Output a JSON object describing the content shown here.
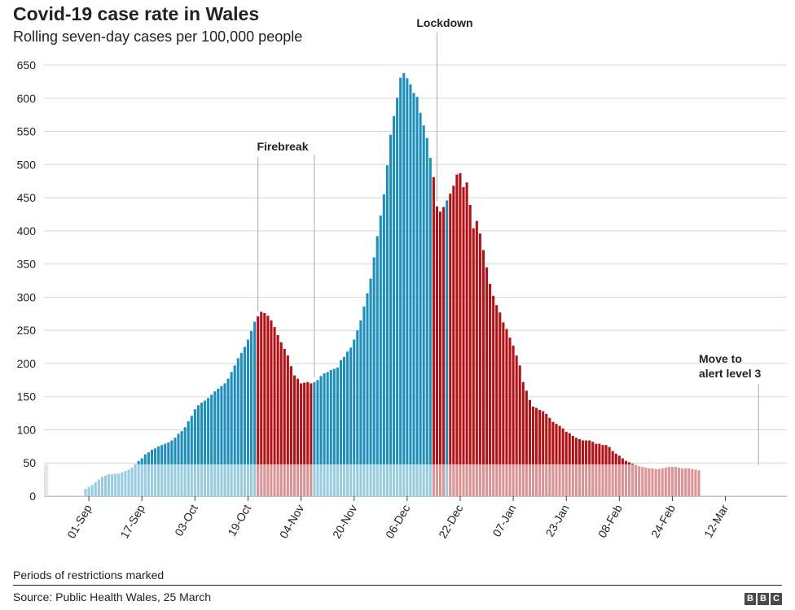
{
  "header": {
    "title": "Covid-19 case rate in Wales",
    "subtitle": "Rolling seven-day cases per 100,000 people"
  },
  "footer": {
    "note": "Periods of restrictions marked",
    "source": "Source: Public Health Wales, 25 March",
    "logo_letters": [
      "B",
      "B",
      "C"
    ]
  },
  "colors": {
    "open": "#1f8fb9",
    "restricted": "#b01216",
    "alert3": "#6a5acd",
    "shade": "#f0f0f0",
    "grid": "#d8d8d8"
  },
  "chart_data": {
    "type": "bar",
    "start_date": "31-Aug",
    "ylim": [
      0,
      650
    ],
    "yticks": [
      0,
      50,
      100,
      150,
      200,
      250,
      300,
      350,
      400,
      450,
      500,
      550,
      600,
      650
    ],
    "xtick_labels": [
      "01-Sep",
      "17-Sep",
      "03-Oct",
      "19-Oct",
      "04-Nov",
      "20-Nov",
      "06-Dec",
      "22-Dec",
      "07-Jan",
      "23-Jan",
      "08-Feb",
      "24-Feb",
      "12-Mar"
    ],
    "values": [
      11,
      14,
      17,
      21,
      25,
      29,
      31,
      33,
      33,
      34,
      34,
      36,
      38,
      40,
      43,
      48,
      53,
      57,
      63,
      66,
      70,
      72,
      75,
      77,
      79,
      81,
      84,
      88,
      94,
      98,
      104,
      113,
      121,
      131,
      137,
      141,
      144,
      148,
      153,
      158,
      162,
      166,
      170,
      177,
      187,
      197,
      208,
      216,
      225,
      236,
      249,
      263,
      271,
      278,
      276,
      272,
      265,
      255,
      243,
      232,
      222,
      212,
      196,
      182,
      177,
      170,
      171,
      172,
      170,
      172,
      175,
      181,
      185,
      187,
      190,
      192,
      194,
      205,
      210,
      218,
      224,
      236,
      250,
      265,
      286,
      306,
      328,
      360,
      392,
      423,
      455,
      499,
      545,
      573,
      601,
      631,
      638,
      630,
      621,
      608,
      602,
      578,
      559,
      540,
      510,
      481,
      437,
      429,
      436,
      446,
      456,
      468,
      485,
      487,
      466,
      473,
      439,
      404,
      415,
      396,
      371,
      345,
      320,
      302,
      288,
      277,
      262,
      252,
      239,
      227,
      212,
      197,
      172,
      159,
      145,
      135,
      133,
      130,
      128,
      124,
      118,
      112,
      109,
      106,
      102,
      97,
      95,
      91,
      88,
      86,
      84,
      84,
      84,
      82,
      79,
      79,
      77,
      77,
      74,
      68,
      64,
      61,
      57,
      53,
      51,
      49,
      47,
      45,
      44,
      43,
      42,
      42,
      41,
      41,
      42,
      43,
      44,
      44,
      44,
      43,
      42,
      42,
      42,
      41,
      40,
      39
    ],
    "restriction_periods": [
      {
        "from_index": 52,
        "to_index": 68,
        "status": "restricted",
        "label": "Firebreak"
      },
      {
        "from_index": 105,
        "to_index": 108,
        "status": "restricted",
        "label": "Lockdown"
      },
      {
        "from_index": 109,
        "to_index": 109,
        "status": "open",
        "label": ""
      },
      {
        "from_index": 110,
        "to_index": 202,
        "status": "restricted",
        "label": ""
      },
      {
        "from_index": 203,
        "to_index": 203,
        "status": "alert3",
        "label": "Move to alert level 3"
      }
    ],
    "annotations": [
      {
        "lines": [
          "Firebreak"
        ],
        "bar_indices": [
          52,
          69
        ]
      },
      {
        "lines": [
          "Lockdown"
        ],
        "bar_indices": [
          106
        ]
      },
      {
        "lines": [
          "Move to",
          "alert level 3"
        ],
        "bar_indices": [
          203
        ]
      }
    ],
    "low_level_band": [
      0,
      48
    ]
  }
}
